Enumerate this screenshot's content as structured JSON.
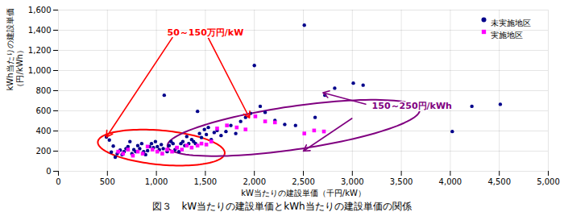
{
  "chart_data": {
    "type": "scatter",
    "title": "図３　kW当たりの建設単価とkWh当たりの建設単価の関係",
    "xlabel": "kW当たりの建設単価（千円/kW）",
    "ylabel": "kWh当たりの建設単価\n（円/kWh）",
    "xlim": [
      0,
      5000
    ],
    "ylim": [
      0,
      1600
    ],
    "xticks": [
      0,
      500,
      {
        "value": 1000,
        "label": "1,000"
      },
      {
        "value": 1500,
        "label": "1,500"
      },
      {
        "value": 2000,
        "label": "2,000"
      },
      {
        "value": 2500,
        "label": "2,500"
      },
      {
        "value": 3000,
        "label": "3,000"
      },
      {
        "value": 3500,
        "label": "3,500"
      },
      {
        "value": 4000,
        "label": "4,000"
      },
      {
        "value": 4500,
        "label": "4,500"
      },
      {
        "value": 5000,
        "label": "5,000"
      }
    ],
    "yticks": [
      0,
      200,
      400,
      600,
      800,
      {
        "value": 1000,
        "label": "1,000"
      },
      {
        "value": 1200,
        "label": "1,200"
      },
      {
        "value": 1400,
        "label": "1,400"
      },
      {
        "value": 1600,
        "label": "1,600"
      }
    ],
    "grid": true,
    "legend": "upper right",
    "series": [
      {
        "name": "未実施地区",
        "color": "#00008B",
        "marker": "circle",
        "x": [
          490,
          520,
          540,
          560,
          580,
          600,
          630,
          650,
          670,
          690,
          710,
          730,
          750,
          770,
          790,
          810,
          830,
          850,
          870,
          890,
          910,
          930,
          950,
          970,
          990,
          1010,
          1030,
          1050,
          1070,
          1080,
          1110,
          1130,
          1150,
          1170,
          1190,
          1210,
          1230,
          1250,
          1270,
          1290,
          1310,
          1330,
          1360,
          1380,
          1400,
          1420,
          1440,
          1460,
          1490,
          1510,
          1530,
          1560,
          1590,
          1620,
          1660,
          1710,
          1760,
          1810,
          1860,
          1910,
          1960,
          2000,
          2060,
          2110,
          2210,
          2310,
          2420,
          2510,
          2620,
          2720,
          2820,
          3010,
          3110,
          4020,
          4220,
          4510
        ],
        "values": [
          340,
          310,
          190,
          250,
          140,
          175,
          210,
          165,
          195,
          225,
          245,
          295,
          175,
          215,
          195,
          255,
          225,
          275,
          195,
          165,
          205,
          245,
          275,
          235,
          295,
          245,
          215,
          265,
          225,
          755,
          195,
          255,
          295,
          275,
          215,
          235,
          195,
          275,
          295,
          255,
          345,
          275,
          315,
          295,
          275,
          595,
          375,
          335,
          415,
          365,
          435,
          315,
          385,
          405,
          355,
          395,
          455,
          375,
          495,
          535,
          575,
          1050,
          645,
          585,
          505,
          465,
          455,
          1450,
          535,
          755,
          825,
          875,
          855,
          395,
          645,
          665
        ]
      },
      {
        "name": "実施地区",
        "color": "#FF00FF",
        "marker": "square",
        "x": [
          610,
          660,
          710,
          760,
          810,
          860,
          910,
          960,
          1010,
          1060,
          1110,
          1160,
          1210,
          1260,
          1310,
          1360,
          1420,
          1460,
          1510,
          1560,
          1620,
          1720,
          1820,
          1910,
          2010,
          2110,
          2210,
          2510,
          2610,
          2710
        ],
        "values": [
          195,
          175,
          215,
          155,
          195,
          175,
          245,
          215,
          195,
          175,
          215,
          195,
          235,
          215,
          255,
          235,
          255,
          275,
          265,
          295,
          425,
          455,
          435,
          415,
          545,
          495,
          485,
          375,
          405,
          395
        ]
      }
    ],
    "ellipses": [
      {
        "center": [
          1050,
          235
        ],
        "width": 1300,
        "height": 340,
        "angle": -5,
        "color": "#FF0000"
      },
      {
        "center": [
          2400,
          430
        ],
        "width": 2600,
        "height": 430,
        "angle": 8,
        "color": "#800080"
      }
    ],
    "annotations": [
      {
        "text": "50～150万円/kW",
        "color": "#FF0000",
        "xy": [
          1950,
          530
        ],
        "xytext": [
          1500,
          1380
        ]
      },
      {
        "color": "#FF0000",
        "xy": [
          490,
          340
        ],
        "xytext": [
          1200,
          1380
        ]
      },
      {
        "text": "150～250円/kWh",
        "color": "#800080",
        "xy": [
          2700,
          780
        ],
        "xytext": [
          3200,
          650
        ]
      },
      {
        "color": "#800080",
        "xy": [
          2500,
          200
        ],
        "xytext": [
          3050,
          560
        ]
      }
    ]
  }
}
